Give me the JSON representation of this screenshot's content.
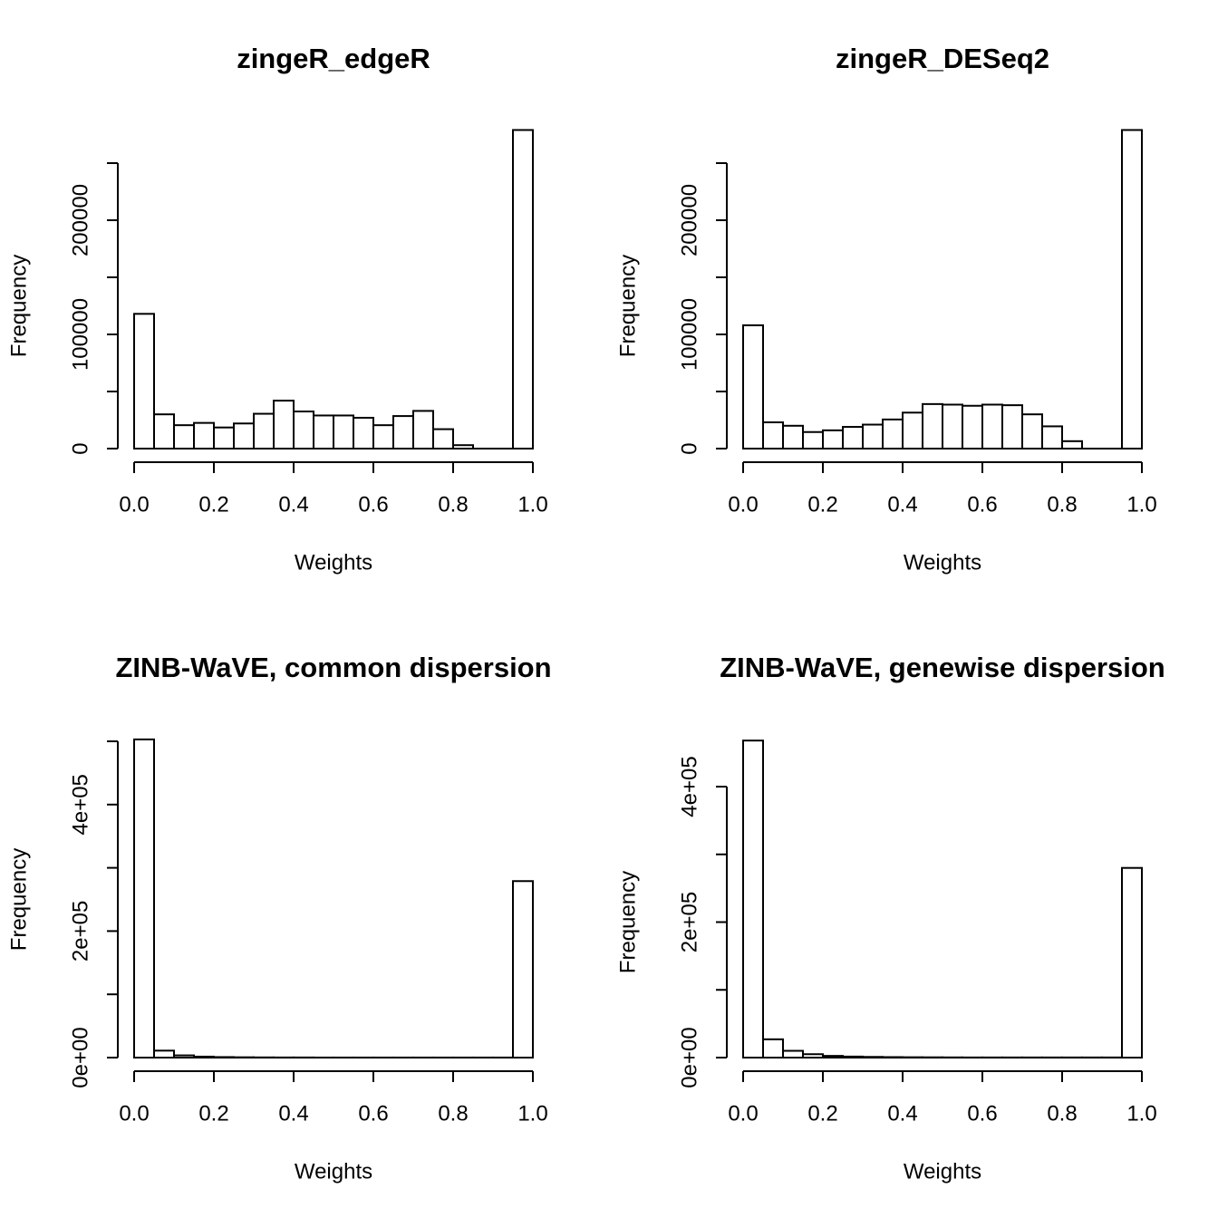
{
  "chart_data": [
    {
      "type": "bar",
      "title": "zingeR_edgeR",
      "xlabel": "Weights",
      "ylabel": "Frequency",
      "xlim": [
        0,
        1
      ],
      "ylim": [
        0,
        250000
      ],
      "x_ticks": [
        0,
        0.2,
        0.4,
        0.6,
        0.8,
        1
      ],
      "x_tick_labels": [
        "0.0",
        "0.2",
        "0.4",
        "0.6",
        "0.8",
        "1.0"
      ],
      "y_ticks": [
        0,
        50000,
        100000,
        150000,
        200000,
        250000
      ],
      "y_tick_labels": [
        "0",
        "",
        "100000",
        "",
        "200000",
        ""
      ],
      "bin_width": 0.05,
      "bin_starts": [
        0,
        0.05,
        0.1,
        0.15,
        0.2,
        0.25,
        0.3,
        0.35,
        0.4,
        0.45,
        0.5,
        0.55,
        0.6,
        0.65,
        0.7,
        0.75,
        0.8,
        0.85,
        0.9,
        0.95
      ],
      "values": [
        118000,
        30000,
        20500,
        22500,
        18500,
        22000,
        30500,
        42000,
        32500,
        29000,
        29000,
        27000,
        20500,
        28500,
        33000,
        17000,
        3000,
        0,
        0,
        279000
      ]
    },
    {
      "type": "bar",
      "title": "zingeR_DESeq2",
      "xlabel": "Weights",
      "ylabel": "Frequency",
      "xlim": [
        0,
        1
      ],
      "ylim": [
        0,
        250000
      ],
      "x_ticks": [
        0,
        0.2,
        0.4,
        0.6,
        0.8,
        1
      ],
      "x_tick_labels": [
        "0.0",
        "0.2",
        "0.4",
        "0.6",
        "0.8",
        "1.0"
      ],
      "y_ticks": [
        0,
        50000,
        100000,
        150000,
        200000,
        250000
      ],
      "y_tick_labels": [
        "0",
        "",
        "100000",
        "",
        "200000",
        ""
      ],
      "bin_width": 0.05,
      "bin_starts": [
        0,
        0.05,
        0.1,
        0.15,
        0.2,
        0.25,
        0.3,
        0.35,
        0.4,
        0.45,
        0.5,
        0.55,
        0.6,
        0.65,
        0.7,
        0.75,
        0.8,
        0.85,
        0.9,
        0.95
      ],
      "values": [
        108000,
        23000,
        20000,
        14500,
        16000,
        19000,
        21000,
        25500,
        31500,
        39000,
        38500,
        37500,
        38500,
        38000,
        30000,
        19500,
        6500,
        0,
        0,
        279000
      ]
    },
    {
      "type": "bar",
      "title": "ZINB-WaVE, common dispersion",
      "xlabel": "Weights",
      "ylabel": "Frequency",
      "xlim": [
        0,
        1
      ],
      "ylim": [
        0,
        500000
      ],
      "x_ticks": [
        0,
        0.2,
        0.4,
        0.6,
        0.8,
        1
      ],
      "x_tick_labels": [
        "0.0",
        "0.2",
        "0.4",
        "0.6",
        "0.8",
        "1.0"
      ],
      "y_ticks": [
        0,
        100000,
        200000,
        300000,
        400000,
        500000
      ],
      "y_tick_labels": [
        "0e+00",
        "",
        "2e+05",
        "",
        "4e+05",
        ""
      ],
      "bin_width": 0.05,
      "bin_starts": [
        0,
        0.05,
        0.1,
        0.15,
        0.2,
        0.25,
        0.3,
        0.35,
        0.4,
        0.45,
        0.5,
        0.55,
        0.6,
        0.65,
        0.7,
        0.75,
        0.8,
        0.85,
        0.9,
        0.95
      ],
      "values": [
        503000,
        11000,
        3500,
        1500,
        800,
        500,
        300,
        200,
        200,
        100,
        100,
        100,
        100,
        100,
        100,
        100,
        100,
        100,
        100,
        279000
      ]
    },
    {
      "type": "bar",
      "title": "ZINB-WaVE, genewise dispersion",
      "xlabel": "Weights",
      "ylabel": "Frequency",
      "xlim": [
        0,
        1
      ],
      "ylim": [
        0,
        450000
      ],
      "x_ticks": [
        0,
        0.2,
        0.4,
        0.6,
        0.8,
        1
      ],
      "x_tick_labels": [
        "0.0",
        "0.2",
        "0.4",
        "0.6",
        "0.8",
        "1.0"
      ],
      "y_ticks": [
        0,
        100000,
        200000,
        300000,
        400000
      ],
      "y_tick_labels": [
        "0e+00",
        "",
        "2e+05",
        "",
        "4e+05"
      ],
      "bin_width": 0.05,
      "bin_starts": [
        0,
        0.05,
        0.1,
        0.15,
        0.2,
        0.25,
        0.3,
        0.35,
        0.4,
        0.45,
        0.5,
        0.55,
        0.6,
        0.65,
        0.7,
        0.75,
        0.8,
        0.85,
        0.9,
        0.95
      ],
      "values": [
        468000,
        27000,
        10000,
        5000,
        2500,
        1500,
        1000,
        700,
        500,
        400,
        300,
        200,
        200,
        200,
        200,
        200,
        200,
        200,
        200,
        280000
      ]
    }
  ]
}
